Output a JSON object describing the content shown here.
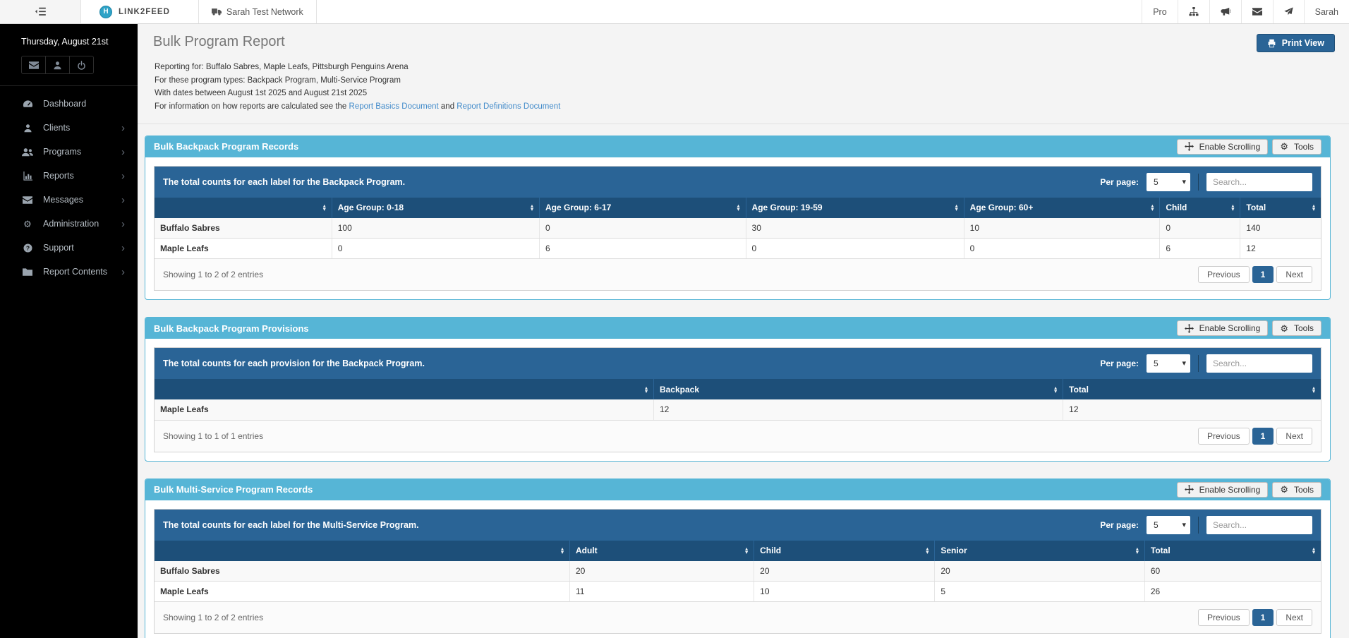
{
  "colors": {
    "panel_header_blue": "#56b5d6",
    "bar_blue": "#2a6496",
    "table_header_blue": "#1d4f79",
    "active_page_blue": "#2a6496",
    "link_blue": "#428bca",
    "sidebar_bg": "#000000",
    "content_bg": "#f4f4f4"
  },
  "topbar": {
    "brand": "LINK2FEED",
    "network_tab": "Sarah Test Network",
    "pro_label": "Pro",
    "user_name": "Sarah",
    "icons": [
      "sitemap",
      "megaphone",
      "envelope",
      "paper-plane"
    ]
  },
  "sidebar": {
    "date": "Thursday, August 21st",
    "quick_actions": [
      "envelope",
      "user",
      "power"
    ],
    "items": [
      {
        "label": "Dashboard",
        "icon": "dashboard",
        "chevron": false
      },
      {
        "label": "Clients",
        "icon": "user",
        "chevron": true
      },
      {
        "label": "Programs",
        "icon": "users",
        "chevron": true
      },
      {
        "label": "Reports",
        "icon": "chart",
        "chevron": true
      },
      {
        "label": "Messages",
        "icon": "envelope",
        "chevron": true
      },
      {
        "label": "Administration",
        "icon": "gears",
        "chevron": true
      },
      {
        "label": "Support",
        "icon": "question",
        "chevron": true
      },
      {
        "label": "Report Contents",
        "icon": "folder",
        "chevron": true
      }
    ]
  },
  "page": {
    "title": "Bulk Program Report",
    "print_button_label": "Print View",
    "info_line1": "Reporting for: Buffalo Sabres, Maple Leafs, Pittsburgh Penguins Arena",
    "info_line2": "For these program types: Backpack Program, Multi-Service Program",
    "info_line3": "With dates between August 1st 2025 and August 21st 2025",
    "info_line4_prefix": "For information on how reports are calculated see the ",
    "info_link_basics": "Report Basics Document",
    "info_line4_and": " and ",
    "info_link_definitions": "Report Definitions Document"
  },
  "table_controls": {
    "enable_scrolling_label": "Enable Scrolling",
    "tools_label": "Tools",
    "per_page_label": "Per page:",
    "per_page_value": "5",
    "search_placeholder": "Search...",
    "previous_label": "Previous",
    "page_number": "1",
    "next_label": "Next"
  },
  "panels": [
    {
      "title": "Bulk Backpack Program Records",
      "description": "The total counts for each label for the Backpack Program.",
      "columns": [
        "",
        "Age Group: 0-18",
        "Age Group: 6-17",
        "Age Group: 19-59",
        "Age Group: 60+",
        "Child",
        "Total"
      ],
      "column_widths_pct": [
        15.2,
        17.8,
        17.7,
        18.7,
        16.8,
        6.9,
        6.9
      ],
      "rows": [
        [
          "Buffalo Sabres",
          "100",
          "0",
          "30",
          "10",
          "0",
          "140"
        ],
        [
          "Maple Leafs",
          "0",
          "6",
          "0",
          "0",
          "6",
          "12"
        ]
      ],
      "footer_text": "Showing 1 to 2 of 2 entries"
    },
    {
      "title": "Bulk Backpack Program Provisions",
      "description": "The total counts for each provision for the Backpack Program.",
      "columns": [
        "",
        "Backpack",
        "Total"
      ],
      "column_widths_pct": [
        42.8,
        35.1,
        22.1
      ],
      "rows": [
        [
          "Maple Leafs",
          "12",
          "12"
        ]
      ],
      "footer_text": "Showing 1 to 1 of 1 entries"
    },
    {
      "title": "Bulk Multi-Service Program Records",
      "description": "The total counts for each label for the Multi-Service Program.",
      "columns": [
        "",
        "Adult",
        "Child",
        "Senior",
        "Total"
      ],
      "column_widths_pct": [
        35.6,
        15.8,
        15.5,
        18.0,
        15.1
      ],
      "rows": [
        [
          "Buffalo Sabres",
          "20",
          "20",
          "20",
          "60"
        ],
        [
          "Maple Leafs",
          "11",
          "10",
          "5",
          "26"
        ]
      ],
      "footer_text": "Showing 1 to 2 of 2 entries"
    }
  ]
}
